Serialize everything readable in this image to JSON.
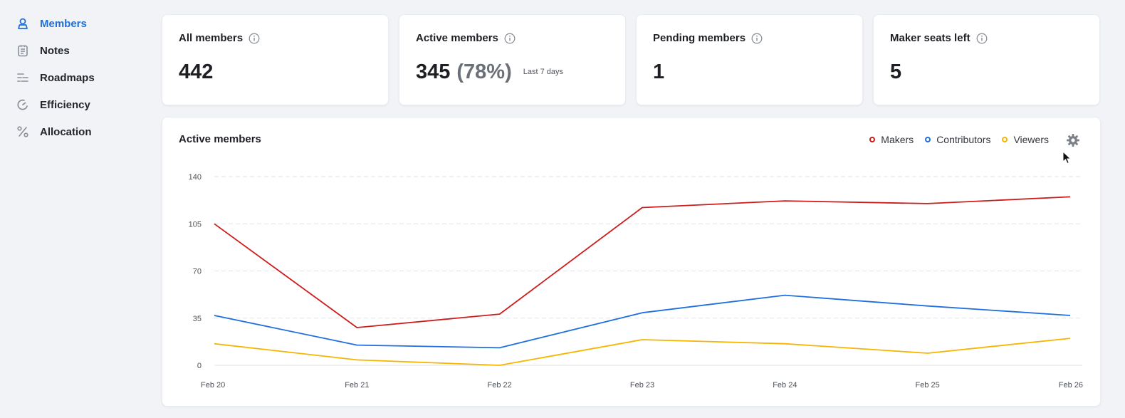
{
  "sidebar": {
    "items": [
      {
        "label": "Members",
        "icon": "members-icon",
        "active": true
      },
      {
        "label": "Notes",
        "icon": "notes-icon",
        "active": false
      },
      {
        "label": "Roadmaps",
        "icon": "roadmaps-icon",
        "active": false
      },
      {
        "label": "Efficiency",
        "icon": "efficiency-icon",
        "active": false
      },
      {
        "label": "Allocation",
        "icon": "allocation-icon",
        "active": false
      }
    ]
  },
  "stats": {
    "all_members": {
      "title": "All members",
      "value": "442"
    },
    "active_members": {
      "title": "Active members",
      "value": "345",
      "percent": "(78%)",
      "period": "Last 7 days"
    },
    "pending_members": {
      "title": "Pending members",
      "value": "1"
    },
    "maker_seats": {
      "title": "Maker seats left",
      "value": "5"
    }
  },
  "colors": {
    "accent": "#1f6fd6",
    "makers": "#cc1d1d",
    "contributors": "#1f6fe0",
    "viewers": "#f7b500"
  },
  "chart_data": {
    "type": "line",
    "title": "Active members",
    "x": [
      "Feb 20",
      "Feb 21",
      "Feb 22",
      "Feb 23",
      "Feb 24",
      "Feb 25",
      "Feb 26"
    ],
    "yticks": [
      0,
      35,
      70,
      105,
      140
    ],
    "ylim": [
      0,
      140
    ],
    "grid": true,
    "legend_position": "top-right",
    "series": [
      {
        "name": "Makers",
        "color": "#cc1d1d",
        "values": [
          105,
          28,
          38,
          117,
          122,
          120,
          125
        ]
      },
      {
        "name": "Contributors",
        "color": "#1f6fe0",
        "values": [
          37,
          15,
          13,
          39,
          52,
          44,
          37
        ]
      },
      {
        "name": "Viewers",
        "color": "#f7b500",
        "values": [
          16,
          4,
          0,
          19,
          16,
          9,
          20
        ]
      }
    ]
  }
}
